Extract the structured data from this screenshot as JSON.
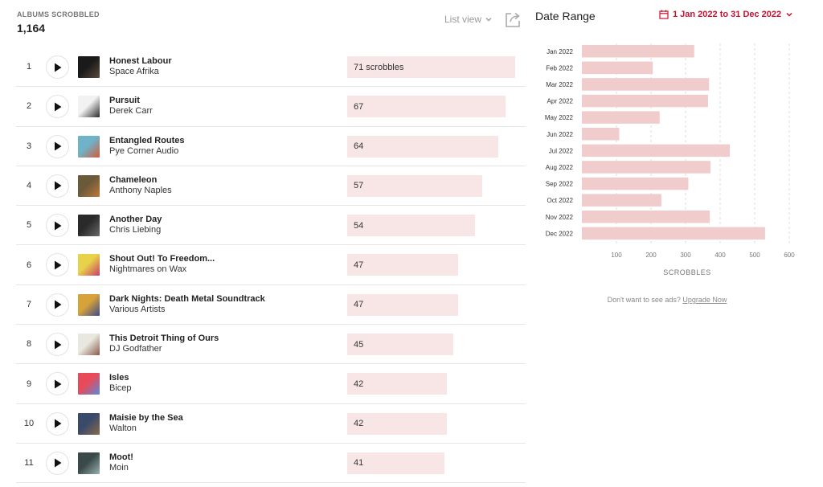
{
  "header": {
    "count_label": "ALBUMS SCROBBLED",
    "count_value": "1,164",
    "view_label": "List view",
    "view_icon": "chevron-down-icon",
    "share_icon": "share-icon"
  },
  "albums": [
    {
      "rank": "1",
      "title": "Honest Labour",
      "artist": "Space Afrika",
      "scrobbles": 71,
      "scrobbles_label": "71 scrobbles",
      "cover_colors": [
        "#1a1a1a",
        "#5a4a3a"
      ]
    },
    {
      "rank": "2",
      "title": "Pursuit",
      "artist": "Derek Carr",
      "scrobbles": 67,
      "scrobbles_label": "67",
      "cover_colors": [
        "#f2f2f2",
        "#2a2a2a"
      ]
    },
    {
      "rank": "3",
      "title": "Entangled Routes",
      "artist": "Pye Corner Audio",
      "scrobbles": 64,
      "scrobbles_label": "64",
      "cover_colors": [
        "#6fb3c8",
        "#d45a3a"
      ]
    },
    {
      "rank": "4",
      "title": "Chameleon",
      "artist": "Anthony Naples",
      "scrobbles": 57,
      "scrobbles_label": "57",
      "cover_colors": [
        "#6b5a3a",
        "#c0783a"
      ]
    },
    {
      "rank": "5",
      "title": "Another Day",
      "artist": "Chris Liebing",
      "scrobbles": 54,
      "scrobbles_label": "54",
      "cover_colors": [
        "#2a2a2a",
        "#6a6a6a"
      ]
    },
    {
      "rank": "6",
      "title": "Shout Out! To Freedom...",
      "artist": "Nightmares on Wax",
      "scrobbles": 47,
      "scrobbles_label": "47",
      "cover_colors": [
        "#e8d24a",
        "#c83a6a"
      ]
    },
    {
      "rank": "7",
      "title": "Dark Nights: Death Metal Soundtrack",
      "artist": "Various Artists",
      "scrobbles": 47,
      "scrobbles_label": "47",
      "cover_colors": [
        "#d8a23a",
        "#3a4a8a"
      ]
    },
    {
      "rank": "8",
      "title": "This Detroit Thing of Ours",
      "artist": "DJ Godfather",
      "scrobbles": 45,
      "scrobbles_label": "45",
      "cover_colors": [
        "#e8e8e0",
        "#8a5a4a"
      ]
    },
    {
      "rank": "9",
      "title": "Isles",
      "artist": "Bicep",
      "scrobbles": 42,
      "scrobbles_label": "42",
      "cover_colors": [
        "#e84a5a",
        "#5a8ad8"
      ]
    },
    {
      "rank": "10",
      "title": "Maisie by the Sea",
      "artist": "Walton",
      "scrobbles": 42,
      "scrobbles_label": "42",
      "cover_colors": [
        "#3a4a6a",
        "#8a6a4a"
      ]
    },
    {
      "rank": "11",
      "title": "Moot!",
      "artist": "Moin",
      "scrobbles": 41,
      "scrobbles_label": "41",
      "cover_colors": [
        "#3a4a4a",
        "#9ab0b0"
      ]
    }
  ],
  "date_range": {
    "title": "Date Range",
    "value": "1 Jan 2022 to 31 Dec 2022",
    "icon": "calendar-icon",
    "accent_color": "#c8102e"
  },
  "chart_data": {
    "type": "bar",
    "orientation": "horizontal",
    "categories": [
      "Jan 2022",
      "Feb 2022",
      "Mar 2022",
      "Apr 2022",
      "May 2022",
      "Jun 2022",
      "Jul 2022",
      "Aug 2022",
      "Sep 2022",
      "Oct 2022",
      "Nov 2022",
      "Dec 2022"
    ],
    "values": [
      325,
      205,
      368,
      365,
      225,
      108,
      428,
      372,
      308,
      230,
      370,
      530
    ],
    "xlabel": "SCROBBLES",
    "xticks": [
      "100",
      "200",
      "300",
      "400",
      "500",
      "600"
    ],
    "xlim": [
      0,
      600
    ],
    "grid": true,
    "bar_color": "#f0cccc"
  },
  "ads": {
    "text": "Don't want to see ads?",
    "link": "Upgrade Now"
  }
}
